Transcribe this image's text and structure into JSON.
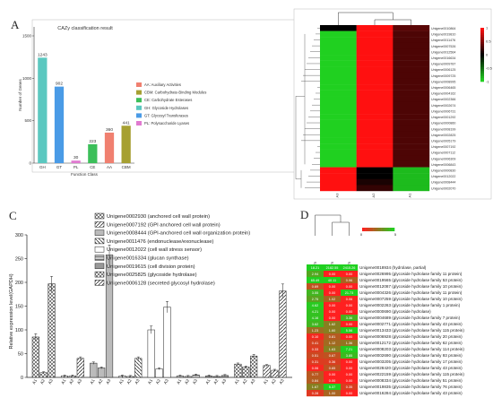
{
  "panels": {
    "A": "A",
    "B": "B",
    "C": "C",
    "D": "D"
  },
  "colors": {
    "GH": "#5bc8c0",
    "GT": "#4a9be6",
    "PL": "#e07ad0",
    "CE": "#3cbf5a",
    "AA": "#f08070",
    "CBM": "#a6a032",
    "heat_high": "#ff1010",
    "heat_mid": "#000000",
    "heat_low": "#20d020"
  },
  "chart_data": [
    {
      "type": "bar",
      "title": "CAZy classification result",
      "xlabel": "Function Class",
      "ylabel": "Number of Genes",
      "ylim": [
        0,
        1500
      ],
      "yticks": [
        "0",
        "500",
        "1000",
        "1500"
      ],
      "categories": [
        "GH",
        "GT",
        "PL",
        "CE",
        "AA",
        "CBM"
      ],
      "values": [
        1243,
        902,
        30,
        223,
        360,
        441
      ],
      "legend": [
        "AA: Auxiliary Activities",
        "CBM: Carbohydrate-Binding Modules",
        "CE: Carbohydrate Esterases",
        "GH: Glycoside Hydrolases",
        "GT: Glycosyl Transferases",
        "PL: Polysaccharide Lyases"
      ],
      "legend_position": "right",
      "grid": false
    },
    {
      "type": "heatmap",
      "columns": [
        "A3",
        "A2",
        "A1"
      ],
      "rows": [
        "Unigene0010864",
        "Unigene0019810",
        "Unigene0011476",
        "Unigene0007526",
        "Unigene0012564",
        "Unigene0016634",
        "Unigene0009787",
        "Unigene0006125",
        "Unigene0009725",
        "Unigene0008995",
        "Unigene0006465",
        "Unigene0004162",
        "Unigene0002366",
        "Unigene0002674",
        "Unigene0006731",
        "Unigene0001292",
        "Unigene0000860",
        "Unigene0008199",
        "Unigene0002825",
        "Unigene0005179",
        "Unigene0007192",
        "Unigene0007112",
        "Unigene0006309",
        "Unigene0006843",
        "Unigene0000830",
        "Unigene0012022",
        "Unigene0008444",
        "Unigene0002070"
      ],
      "colorbar": [
        "1",
        "0.5",
        "0",
        "-0.5",
        "-1"
      ],
      "values": [
        [
          0.0,
          1.0,
          0.35
        ],
        [
          -1.0,
          1.0,
          0.3
        ],
        [
          -1.0,
          1.0,
          0.3
        ],
        [
          -1.0,
          1.0,
          0.3
        ],
        [
          -1.0,
          1.0,
          0.3
        ],
        [
          -1.0,
          1.0,
          0.3
        ],
        [
          -1.0,
          1.0,
          0.3
        ],
        [
          -1.0,
          1.0,
          0.3
        ],
        [
          -1.0,
          1.0,
          0.3
        ],
        [
          -1.0,
          1.0,
          0.3
        ],
        [
          -1.0,
          1.0,
          0.3
        ],
        [
          -1.0,
          1.0,
          0.3
        ],
        [
          -1.0,
          1.0,
          0.3
        ],
        [
          -1.0,
          1.0,
          0.3
        ],
        [
          -1.0,
          1.0,
          0.3
        ],
        [
          -1.0,
          1.0,
          0.3
        ],
        [
          -1.0,
          1.0,
          0.3
        ],
        [
          -1.0,
          1.0,
          0.3
        ],
        [
          -1.0,
          1.0,
          0.3
        ],
        [
          -1.0,
          1.0,
          0.3
        ],
        [
          -1.0,
          1.0,
          0.3
        ],
        [
          -1.0,
          1.0,
          0.3
        ],
        [
          -1.0,
          1.0,
          0.3
        ],
        [
          -1.0,
          1.0,
          0.3
        ],
        [
          1.0,
          0.0,
          -0.9
        ],
        [
          1.0,
          0.0,
          -0.9
        ],
        [
          1.0,
          0.1,
          -0.9
        ],
        [
          1.0,
          0.2,
          -0.9
        ]
      ]
    },
    {
      "type": "bar",
      "ylabel": "Relative expression level(GAPDH)",
      "ylim": [
        0,
        300
      ],
      "yticks": [
        "0",
        "50",
        "100",
        "150",
        "200",
        "250",
        "300"
      ],
      "groups": [
        {
          "name": "Unigene0002930 (anchored cell wall protein)",
          "values": [
            85,
            10,
            197
          ]
        },
        {
          "name": "Unigene0007192 (GPI anchored cell wall protein)",
          "values": [
            3,
            3,
            40
          ]
        },
        {
          "name": "Unigene0008444 (GPI-anchored cell wall organization protein)",
          "values": [
            30,
            20,
            258
          ]
        },
        {
          "name": "Unigene0011476 (endonuclease/exonuclease)",
          "values": [
            3,
            2,
            40
          ]
        },
        {
          "name": "Unigene0012022 (cell wall stress sensor)",
          "values": [
            100,
            18,
            148
          ]
        },
        {
          "name": "Unigene0016334 (glucan synthase)",
          "values": [
            3,
            2,
            5
          ]
        },
        {
          "name": "Unigene0019615 (cell division protein)",
          "values": [
            3,
            2,
            4
          ]
        },
        {
          "name": "Unigene0025825 (glycoside hydrolase)",
          "values": [
            28,
            22,
            45
          ]
        },
        {
          "name": "Unigene0006128 (secreted glycosyl hydrolase)",
          "values": [
            25,
            15,
            182
          ]
        }
      ],
      "tick_labels": [
        "A1",
        "A2",
        "A3"
      ],
      "legend_position": "top-right"
    },
    {
      "type": "table",
      "colorbar": [
        "0",
        "5"
      ],
      "columns": [
        "A3 fpkm",
        "A2 fpkm",
        "A1 fpkm"
      ],
      "rows": [
        {
          "gene": "Unigene0018934 (hydrolase, partial)",
          "values": [
            "18.21",
            "2182.55",
            "2415.26"
          ]
        },
        {
          "gene": "Unigene0026995 (glycoside hydrolase family 11 protein)",
          "values": [
            "2.94",
            "0.00",
            "0.00"
          ]
        },
        {
          "gene": "Unigene0019565 (glycoside hydrolase family 53 protein)",
          "values": [
            "65.49",
            "40.11",
            "0.96"
          ]
        },
        {
          "gene": "Unigene0012087 (glycoside hydrolase family 10 protein)",
          "values": [
            "0.69",
            "0.00",
            "0.00"
          ]
        },
        {
          "gene": "Unigene0004326 (glycoside hydrolase family 11 protein)",
          "values": [
            "3.55",
            "0.00",
            "21.73"
          ]
        },
        {
          "gene": "Unigene0007259 (glycoside hydrolase family 10 protein)",
          "values": [
            "2.75",
            "1.02",
            "0.06"
          ]
        },
        {
          "gene": "Unigene0002263 (glycoside hydrolase family 1 protein)",
          "values": [
            "4.62",
            "0.00",
            "0.00"
          ]
        },
        {
          "gene": "Unigene0000690 (glycoside hydrolase)",
          "values": [
            "4.21",
            "0.00",
            "0.00"
          ]
        },
        {
          "gene": "Unigene0004689 (glycoside hydrolase family 7 protein)",
          "values": [
            "4.16",
            "0.00",
            "3.36"
          ]
        },
        {
          "gene": "Unigene0002771 (glycoside hydrolase family 43 protein)",
          "values": [
            "3.62",
            "1.62",
            "0.00"
          ]
        },
        {
          "gene": "Unigene0013433 (glycoside hydrolase family 115 protein)",
          "values": [
            "1.23",
            "1.60",
            "5.56"
          ]
        },
        {
          "gene": "Unigene0006928 (glycoside hydrolase family 20 protein)",
          "values": [
            "0.10",
            "0.81",
            "0.00"
          ]
        },
        {
          "gene": "Unigene0012172 (glycoside hydrolase family 62 protein)",
          "values": [
            "0.41",
            "1.12",
            "1.36"
          ]
        },
        {
          "gene": "Unigene0008203 (glycoside hydrolase family 114 protein)",
          "values": [
            "0.33",
            "1.63",
            "7.21"
          ]
        },
        {
          "gene": "Unigene0002690 (glycoside hydrolase family 93 protein)",
          "values": [
            "0.51",
            "0.67",
            "3.85"
          ]
        },
        {
          "gene": "Unigene0003205 (glycoside hydrolase family 17 protein)",
          "values": [
            "0.31",
            "0.36",
            "0.00"
          ]
        },
        {
          "gene": "Unigene0028420 (glycoside hydrolase family 43 protein)",
          "values": [
            "0.06",
            "0.65",
            "0.00"
          ]
        },
        {
          "gene": "Unigene0022159 (glycoside hydrolase family 115 protein)",
          "values": [
            "0.77",
            "0.00",
            "0.00"
          ]
        },
        {
          "gene": "Unigene0008334 (glycoside hydrolase family 51 protein)",
          "values": [
            "0.84",
            "0.00",
            "0.00"
          ]
        },
        {
          "gene": "Unigene0019835 (glycoside hydrolase family 76 protein)",
          "values": [
            "1.67",
            "5.37",
            "0.35"
          ]
        },
        {
          "gene": "Unigene0016284 (glycoside hydrolase family 43 protein)",
          "values": [
            "0.28",
            "1.00",
            "0.00"
          ]
        }
      ]
    }
  ]
}
